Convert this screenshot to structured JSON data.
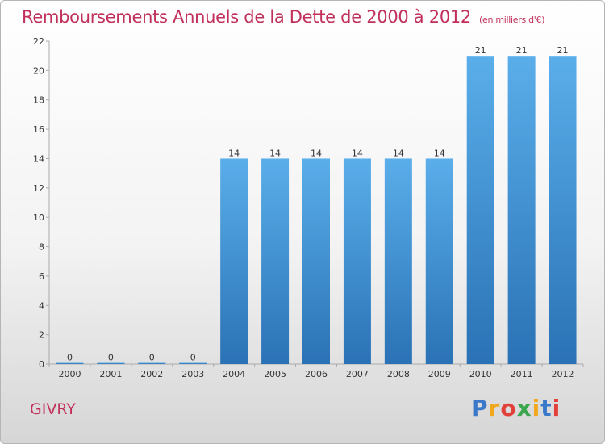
{
  "chart_data": {
    "type": "bar",
    "title": "Remboursements Annuels de la Dette de 2000 à 2012",
    "subtitle": "(en milliers d'€)",
    "categories": [
      "2000",
      "2001",
      "2002",
      "2003",
      "2004",
      "2005",
      "2006",
      "2007",
      "2008",
      "2009",
      "2010",
      "2011",
      "2012"
    ],
    "values": [
      0,
      0,
      0,
      0,
      14,
      14,
      14,
      14,
      14,
      14,
      21,
      21,
      21
    ],
    "ylim": [
      0,
      22
    ],
    "yticks": [
      0,
      2,
      4,
      6,
      8,
      10,
      12,
      14,
      16,
      18,
      20,
      22
    ],
    "xlabel": "",
    "ylabel": "",
    "bar_color": "#3d8fd4",
    "grid": false
  },
  "place_name": "GIVRY",
  "logo": {
    "letters": [
      "P",
      "r",
      "o",
      "x",
      "i",
      "t",
      "i"
    ],
    "colors": [
      "#3a78c9",
      "#f2a81d",
      "#e2403a",
      "#3aa74f",
      "#f2a81d",
      "#3a78c9",
      "#e2403a"
    ]
  }
}
